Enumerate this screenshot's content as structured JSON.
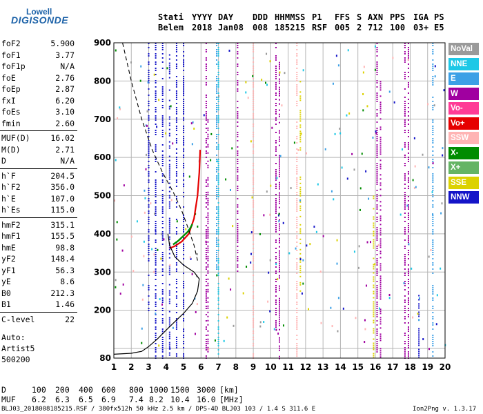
{
  "logo": {
    "line1": "Lowell",
    "line2": "DIGISONDE"
  },
  "header": {
    "labels": [
      "Stati",
      "YYYY",
      "DAY",
      "DDD",
      "HHMMSS",
      "P1",
      "FFS",
      "S",
      "AXN",
      "PPS",
      "IGA",
      "PS"
    ],
    "values": [
      "Belem",
      "2018",
      "Jan08",
      "008",
      "185215",
      "RSF",
      "005",
      "2",
      "712",
      "100",
      "03+",
      "E5"
    ]
  },
  "params": [
    {
      "name": "foF2",
      "value": "5.900"
    },
    {
      "name": "foF1",
      "value": "3.77"
    },
    {
      "name": "foF1p",
      "value": "N/A"
    },
    {
      "name": "foE",
      "value": "2.76"
    },
    {
      "name": "foEp",
      "value": "2.87"
    },
    {
      "name": "fxI",
      "value": "6.20"
    },
    {
      "name": "foEs",
      "value": "3.10"
    },
    {
      "name": "fmin",
      "value": "2.60"
    },
    {
      "name": "MUF(D)",
      "value": "16.02"
    },
    {
      "name": "M(D)",
      "value": "2.71"
    },
    {
      "name": "D",
      "value": "N/A"
    },
    {
      "name": "h`F",
      "value": "204.5"
    },
    {
      "name": "h`F2",
      "value": "356.0"
    },
    {
      "name": "h`E",
      "value": "107.0"
    },
    {
      "name": "h`Es",
      "value": "115.0"
    },
    {
      "name": "hmF2",
      "value": "315.1"
    },
    {
      "name": "hmF1",
      "value": "155.5"
    },
    {
      "name": "hmE",
      "value": "98.8"
    },
    {
      "name": "yF2",
      "value": "148.4"
    },
    {
      "name": "yF1",
      "value": "56.3"
    },
    {
      "name": "yE",
      "value": "8.6"
    },
    {
      "name": "B0",
      "value": "212.3"
    },
    {
      "name": "B1",
      "value": "1.46"
    },
    {
      "name": "C-level",
      "value": "22"
    }
  ],
  "auto": {
    "line1": "Auto:",
    "line2": "Artist5",
    "line3": "500200"
  },
  "legend": [
    {
      "label": "NoVal",
      "bg": "#9a9a9a",
      "fg": "#ffffff"
    },
    {
      "label": "NNE",
      "bg": "#1ec8e6",
      "fg": "#ffffff"
    },
    {
      "label": "E",
      "bg": "#3ca0e6",
      "fg": "#ffffff"
    },
    {
      "label": "W",
      "bg": "#a000a0",
      "fg": "#ffffff"
    },
    {
      "label": "Vo-",
      "bg": "#ff3c96",
      "fg": "#ffffff"
    },
    {
      "label": "Vo+",
      "bg": "#e60000",
      "fg": "#ffffff"
    },
    {
      "label": "SSW",
      "bg": "#ffb4b4",
      "fg": "#ffffff"
    },
    {
      "label": "X-",
      "bg": "#008c00",
      "fg": "#ffffff"
    },
    {
      "label": "X+",
      "bg": "#64b464",
      "fg": "#ffffff"
    },
    {
      "label": "SSE",
      "bg": "#dcd200",
      "fg": "#ffffff"
    },
    {
      "label": "NNW",
      "bg": "#1414c8",
      "fg": "#ffffff"
    }
  ],
  "muf_table": {
    "d_label": "D",
    "d_values": [
      "100",
      "200",
      "400",
      "600",
      "800",
      "1000",
      "1500",
      "3000"
    ],
    "d_unit": "[km]",
    "muf_label": "MUF",
    "muf_values": [
      "6.2",
      "6.3",
      "6.5",
      "6.9",
      "7.4",
      "8.2",
      "10.4",
      "16.0"
    ],
    "muf_unit": "[MHz]"
  },
  "footer": {
    "left": "BLJ03_2018008185215.RSF / 380fx512h 50 kHz 2.5 km / DPS-4D BLJ03 103 / 1.4 S 311.6 E",
    "right": "Ion2Png v. 1.3.17"
  },
  "chart_data": {
    "type": "scatter",
    "xlim": [
      1,
      20
    ],
    "ylim": [
      80,
      900
    ],
    "x_ticks": [
      1,
      2,
      3,
      4,
      5,
      6,
      7,
      8,
      9,
      10,
      11,
      12,
      13,
      14,
      15,
      16,
      17,
      18,
      19,
      20
    ],
    "y_ticks": [
      80,
      100,
      200,
      300,
      400,
      500,
      600,
      700,
      800,
      900
    ],
    "y_tick_labels": [
      "80",
      "",
      "200",
      "300",
      "400",
      "500",
      "600",
      "700",
      "800",
      "900"
    ],
    "grid": true,
    "legend_position": "right",
    "profile_solid": [
      [
        1.0,
        88
      ],
      [
        2.0,
        90
      ],
      [
        2.6,
        94
      ],
      [
        3.0,
        105
      ],
      [
        3.5,
        125
      ],
      [
        4.0,
        148
      ],
      [
        4.5,
        170
      ],
      [
        5.0,
        192
      ],
      [
        5.5,
        218
      ],
      [
        5.8,
        250
      ],
      [
        5.9,
        282
      ],
      [
        5.6,
        300
      ],
      [
        5.0,
        318
      ],
      [
        4.5,
        340
      ],
      [
        4.2,
        370
      ],
      [
        4.1,
        400
      ]
    ],
    "profile_dashed": [
      [
        1.5,
        900
      ],
      [
        2.0,
        800
      ],
      [
        2.6,
        700
      ],
      [
        3.2,
        620
      ],
      [
        3.8,
        560
      ],
      [
        4.4,
        510
      ],
      [
        4.9,
        460
      ],
      [
        5.3,
        410
      ],
      [
        5.6,
        370
      ],
      [
        5.8,
        330
      ]
    ],
    "trace_red": [
      [
        4.2,
        362
      ],
      [
        4.5,
        368
      ],
      [
        4.9,
        380
      ],
      [
        5.3,
        400
      ],
      [
        5.6,
        440
      ],
      [
        5.8,
        500
      ],
      [
        5.9,
        560
      ],
      [
        5.95,
        620
      ]
    ],
    "trace_green": [
      [
        4.4,
        372
      ],
      [
        4.7,
        382
      ],
      [
        5.0,
        395
      ],
      [
        5.3,
        408
      ],
      [
        5.5,
        425
      ]
    ],
    "columns": [
      {
        "x": 3.0,
        "y0": 200,
        "y1": 900,
        "color": "#1414c8"
      },
      {
        "x": 3.4,
        "y0": 80,
        "y1": 900,
        "color": "#1414c8"
      },
      {
        "x": 3.8,
        "y0": 80,
        "y1": 900,
        "color": "#1414c8"
      },
      {
        "x": 4.2,
        "y0": 80,
        "y1": 870,
        "color": "#1414c8"
      },
      {
        "x": 4.6,
        "y0": 80,
        "y1": 900,
        "color": "#1414c8"
      },
      {
        "x": 5.0,
        "y0": 80,
        "y1": 900,
        "color": "#1414c8"
      },
      {
        "x": 6.3,
        "y0": 80,
        "y1": 900,
        "color": "#a000a0"
      },
      {
        "x": 6.4,
        "y0": 80,
        "y1": 700,
        "color": "#a000a0"
      },
      {
        "x": 6.9,
        "y0": 300,
        "y1": 900,
        "color": "#3ca0e6"
      },
      {
        "x": 7.0,
        "y0": 80,
        "y1": 900,
        "color": "#1ec8e6"
      },
      {
        "x": 8.1,
        "y0": 300,
        "y1": 900,
        "color": "#a000a0"
      },
      {
        "x": 9.0,
        "y0": 80,
        "y1": 900,
        "color": "#ffb4b4"
      },
      {
        "x": 10.3,
        "y0": 150,
        "y1": 900,
        "color": "#a000a0"
      },
      {
        "x": 10.5,
        "y0": 80,
        "y1": 850,
        "color": "#a000a0"
      },
      {
        "x": 11.5,
        "y0": 80,
        "y1": 900,
        "color": "#ffb4b4"
      },
      {
        "x": 11.7,
        "y0": 600,
        "y1": 800,
        "color": "#dcd200"
      },
      {
        "x": 11.7,
        "y0": 250,
        "y1": 550,
        "color": "#dcd200"
      },
      {
        "x": 15.9,
        "y0": 80,
        "y1": 500,
        "color": "#dcd200"
      },
      {
        "x": 16.1,
        "y0": 80,
        "y1": 900,
        "color": "#a000a0"
      },
      {
        "x": 16.3,
        "y0": 80,
        "y1": 800,
        "color": "#a000a0"
      },
      {
        "x": 17.7,
        "y0": 80,
        "y1": 900,
        "color": "#a000a0"
      },
      {
        "x": 17.9,
        "y0": 80,
        "y1": 900,
        "color": "#a000a0"
      },
      {
        "x": 18.5,
        "y0": 80,
        "y1": 240,
        "color": "#1414c8"
      },
      {
        "x": 19.3,
        "y0": 80,
        "y1": 900,
        "color": "#3ca0e6"
      }
    ]
  }
}
